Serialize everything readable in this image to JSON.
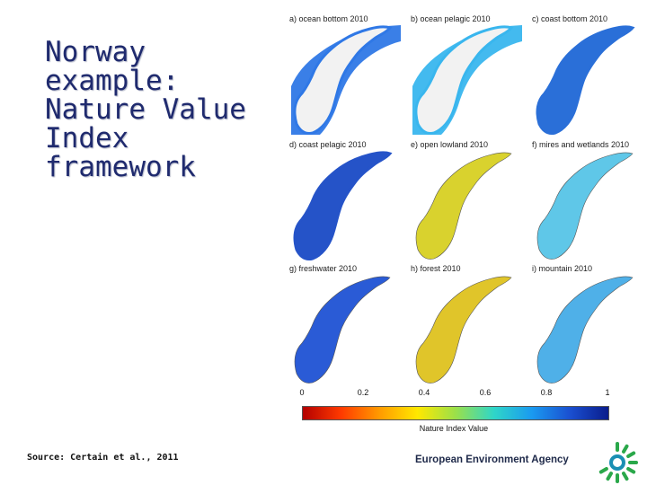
{
  "title_lines": [
    "Norway",
    "example:",
    "Nature Value",
    "Index",
    "framework"
  ],
  "source": "Source: Certain et al., 2011",
  "panels": [
    {
      "label": "a) ocean bottom 2010",
      "fill": "#2f78e6",
      "land": "#f2f2f2"
    },
    {
      "label": "b) ocean pelagic 2010",
      "fill": "#39b6ee",
      "land": "#f2f2f2"
    },
    {
      "label": "c) coast bottom 2010",
      "fill": "#2a6fd8",
      "land": "#f6f6f6"
    },
    {
      "label": "d) coast pelagic 2010",
      "fill": "#2553c8",
      "land": "#f6f6f6"
    },
    {
      "label": "e) open lowland 2010",
      "fill": "#d9d22e",
      "land": "#d9d22e"
    },
    {
      "label": "f) mires and wetlands 2010",
      "fill": "#5fc7e8",
      "land": "#5fc7e8"
    },
    {
      "label": "g) freshwater 2010",
      "fill": "#2a5bd6",
      "land": "#2a5bd6"
    },
    {
      "label": "h) forest 2010",
      "fill": "#e0c52a",
      "land": "#e0c52a"
    },
    {
      "label": "i) mountain 2010",
      "fill": "#4fb0e8",
      "land": "#4fb0e8"
    }
  ],
  "legend": {
    "ticks": [
      "0",
      "0.2",
      "0.4",
      "0.6",
      "0.8",
      "1"
    ],
    "title": "Nature Index Value",
    "colors": [
      "#b30000",
      "#ff3a00",
      "#ff9a00",
      "#ffe800",
      "#9be04a",
      "#2fd6c8",
      "#1a9af0",
      "#1a4fd0",
      "#0a1c8c"
    ]
  },
  "footer": {
    "agency": "European Environment Agency"
  }
}
